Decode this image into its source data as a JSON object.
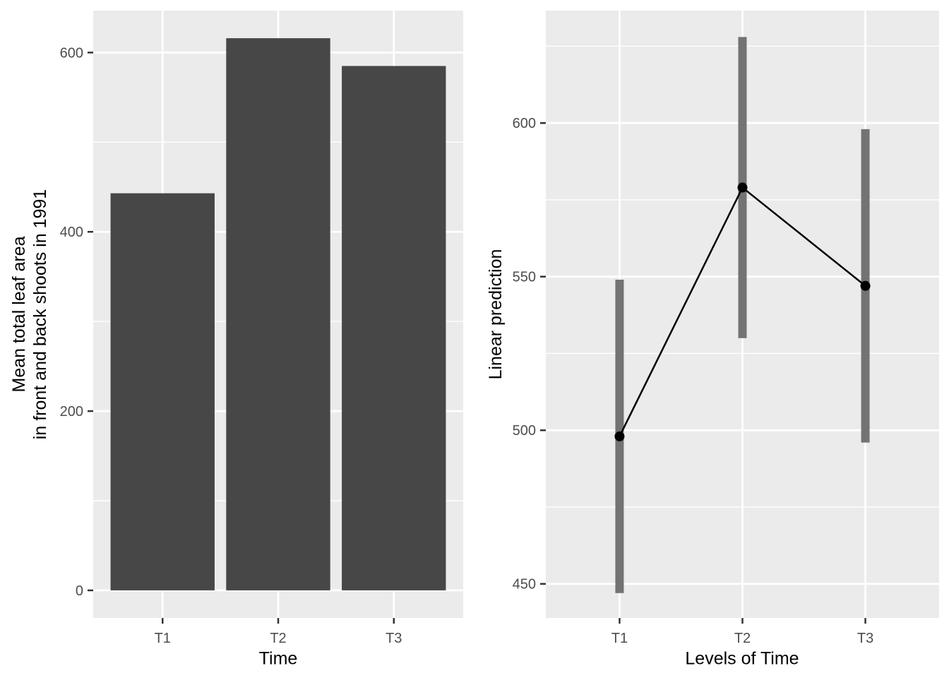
{
  "figure": {
    "background": "#FFFFFF",
    "panel_color": "#EBEBEB",
    "grid_color": "#FFFFFF",
    "tick_mark_color": "#333333",
    "tick_label_color": "#4D4D4D"
  },
  "chart_data": [
    {
      "type": "bar",
      "title": "",
      "categories": [
        "T1",
        "T2",
        "T3"
      ],
      "values": [
        443,
        616,
        585
      ],
      "xlabel": "Time",
      "ylabel": "Mean total leaf area in front and back shoots in 1991",
      "ylabel_lines": [
        "Mean total leaf area",
        "in front and back shoots in 1991"
      ],
      "yticks": [
        0,
        200,
        400,
        600
      ],
      "yticks_minor": [
        100,
        300,
        500
      ],
      "ylim": [
        -30.8,
        646.8
      ],
      "grid": "on",
      "bar_color": "#474747",
      "panel_color": "#EBEBEB"
    },
    {
      "type": "pointrange",
      "title": "",
      "categories": [
        "T1",
        "T2",
        "T3"
      ],
      "values": [
        498,
        579,
        547
      ],
      "ci_low": [
        447,
        530,
        496
      ],
      "ci_high": [
        549,
        628,
        598
      ],
      "xlabel": "Levels of Time",
      "ylabel": "Linear prediction",
      "ylabel_lines": [
        "Linear prediction"
      ],
      "yticks": [
        450,
        500,
        550,
        600
      ],
      "yticks_minor": [
        475,
        525,
        575,
        625
      ],
      "ylim": [
        438.9,
        636.6
      ],
      "grid": "on",
      "ci_color": "#737373",
      "point_color": "#000000",
      "line_color": "#000000",
      "panel_color": "#EBEBEB"
    }
  ]
}
